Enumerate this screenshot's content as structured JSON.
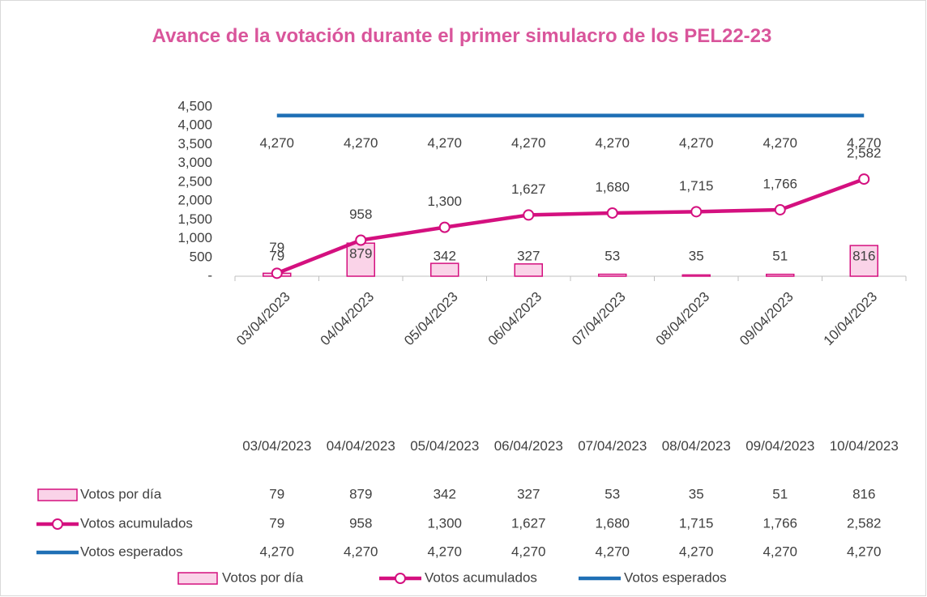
{
  "chart_data": {
    "type": "bar",
    "title": "Avance de la votación durante el primer simulacro de los PEL22-23",
    "categories": [
      "03/04/2023",
      "04/04/2023",
      "05/04/2023",
      "06/04/2023",
      "07/04/2023",
      "08/04/2023",
      "09/04/2023",
      "10/04/2023"
    ],
    "series": [
      {
        "name": "Votos por día",
        "type": "bar",
        "color": "#d4107f",
        "fill": "#fad3e8",
        "values": [
          79,
          879,
          342,
          327,
          53,
          35,
          51,
          816
        ]
      },
      {
        "name": "Votos acumulados",
        "type": "line",
        "color": "#d4107f",
        "marker": true,
        "values": [
          79,
          958,
          1300,
          1627,
          1680,
          1715,
          1766,
          2582
        ],
        "value_labels": [
          "79",
          "958",
          "1,300",
          "1,627",
          "1,680",
          "1,715",
          "1,766",
          "2,582"
        ]
      },
      {
        "name": "Votos esperados",
        "type": "line",
        "color": "#1f6fb5",
        "marker": false,
        "values": [
          4270,
          4270,
          4270,
          4270,
          4270,
          4270,
          4270,
          4270
        ],
        "value_labels": [
          "4,270",
          "4,270",
          "4,270",
          "4,270",
          "4,270",
          "4,270",
          "4,270",
          "4,270"
        ]
      }
    ],
    "ylim": [
      0,
      4500
    ],
    "yticks": [
      {
        "value": 0,
        "label": "-"
      },
      500,
      {
        "value": 1000,
        "label": "1,000"
      },
      {
        "value": 1500,
        "label": "1,500"
      },
      {
        "value": 2000,
        "label": "2,000"
      },
      {
        "value": 2500,
        "label": "2,500"
      },
      {
        "value": 3000,
        "label": "3,000"
      },
      {
        "value": 3500,
        "label": "3,500"
      },
      {
        "value": 4000,
        "label": "4,000"
      },
      {
        "value": 4500,
        "label": "4,500"
      }
    ],
    "grid": false,
    "legend": "bottom",
    "data_table": true
  }
}
